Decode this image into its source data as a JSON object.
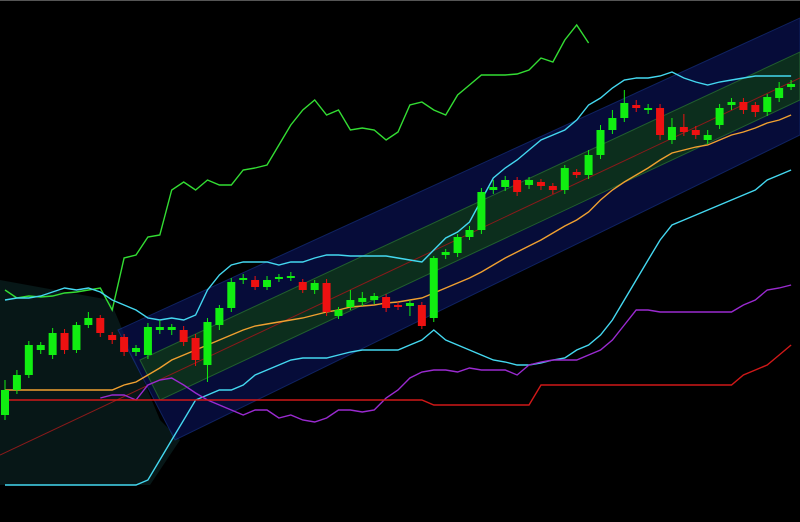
{
  "chart_data": {
    "type": "candlestick",
    "ylim": [
      0,
      522
    ],
    "up_color": "#11ee11",
    "down_color": "#ee1111",
    "open": [
      107,
      132,
      147,
      172,
      167,
      189,
      172,
      197,
      204,
      187,
      185,
      170,
      167,
      192,
      192,
      192,
      184,
      157,
      197,
      214,
      242,
      242,
      235,
      243,
      244,
      240,
      232,
      239,
      206,
      215,
      220,
      222,
      225,
      217,
      216,
      217,
      204,
      267,
      269,
      285,
      292,
      332,
      335,
      342,
      337,
      340,
      336,
      332,
      350,
      347,
      367,
      392,
      404,
      417,
      412,
      414,
      382,
      395,
      392,
      382,
      397,
      417,
      420,
      417,
      410,
      424,
      435
    ],
    "close": [
      132,
      147,
      177,
      177,
      189,
      172,
      197,
      204,
      189,
      182,
      170,
      174,
      195,
      195,
      195,
      180,
      162,
      200,
      214,
      240,
      244,
      235,
      242,
      245,
      246,
      232,
      239,
      210,
      212,
      222,
      224,
      226,
      214,
      215,
      219,
      196,
      264,
      270,
      285,
      292,
      330,
      335,
      342,
      330,
      342,
      336,
      332,
      354,
      347,
      367,
      392,
      404,
      419,
      414,
      414,
      387,
      395,
      390,
      387,
      387,
      414,
      420,
      412,
      410,
      425,
      434,
      438
    ],
    "high": [
      142,
      152,
      181,
      180,
      194,
      193,
      200,
      210,
      207,
      190,
      188,
      177,
      199,
      202,
      198,
      196,
      188,
      204,
      217,
      244,
      248,
      246,
      246,
      248,
      250,
      243,
      242,
      243,
      215,
      232,
      230,
      229,
      228,
      220,
      222,
      220,
      266,
      273,
      288,
      296,
      334,
      342,
      346,
      345,
      345,
      343,
      339,
      357,
      353,
      372,
      397,
      412,
      432,
      422,
      418,
      418,
      404,
      408,
      396,
      392,
      418,
      424,
      424,
      420,
      428,
      440,
      442
    ],
    "low": [
      102,
      128,
      144,
      168,
      163,
      168,
      169,
      194,
      185,
      178,
      166,
      166,
      163,
      188,
      187,
      176,
      156,
      140,
      192,
      210,
      238,
      232,
      232,
      240,
      241,
      229,
      228,
      206,
      203,
      212,
      216,
      218,
      210,
      212,
      206,
      193,
      200,
      263,
      265,
      282,
      288,
      328,
      331,
      326,
      333,
      332,
      328,
      328,
      344,
      343,
      363,
      388,
      400,
      410,
      408,
      382,
      378,
      386,
      383,
      378,
      393,
      412,
      408,
      405,
      406,
      420,
      432
    ],
    "series": [
      {
        "color": "#33dd33",
        "values": [
          232,
          224,
          226,
          225,
          226,
          229,
          230,
          232,
          234,
          212,
          264,
          267,
          285,
          287,
          332,
          340,
          332,
          342,
          337,
          337,
          352,
          354,
          357,
          377,
          397,
          412,
          422,
          407,
          412,
          392,
          394,
          392,
          382,
          390,
          417,
          420,
          412,
          407,
          427,
          437,
          447,
          447,
          447,
          448,
          452,
          464,
          460,
          482,
          497,
          479,
          null,
          null,
          null,
          null,
          null,
          null,
          null,
          null,
          null,
          null,
          null,
          null,
          null,
          null,
          null,
          null,
          null
        ]
      },
      {
        "color": "#44d8f0",
        "values": [
          222,
          224,
          224,
          226,
          230,
          234,
          232,
          234,
          230,
          222,
          217,
          212,
          204,
          202,
          204,
          202,
          207,
          232,
          247,
          257,
          260,
          260,
          260,
          257,
          260,
          260,
          264,
          267,
          267,
          266,
          266,
          266,
          266,
          264,
          262,
          260,
          272,
          284,
          290,
          300,
          322,
          344,
          354,
          362,
          372,
          382,
          387,
          392,
          402,
          417,
          424,
          434,
          442,
          444,
          444,
          446,
          450,
          444,
          440,
          437,
          440,
          442,
          444,
          446,
          446,
          446,
          446
        ]
      },
      {
        "color": "#44d8f0",
        "values": [
          37,
          37,
          37,
          37,
          37,
          37,
          37,
          37,
          37,
          37,
          37,
          37,
          42,
          62,
          82,
          102,
          122,
          127,
          132,
          132,
          137,
          147,
          152,
          157,
          162,
          164,
          164,
          164,
          167,
          170,
          172,
          172,
          172,
          172,
          177,
          182,
          192,
          182,
          177,
          172,
          167,
          162,
          160,
          157,
          157,
          159,
          162,
          164,
          172,
          177,
          187,
          202,
          222,
          242,
          262,
          282,
          297,
          302,
          307,
          312,
          317,
          322,
          327,
          332,
          342,
          347,
          352
        ]
      },
      {
        "color": "#f0a030",
        "values": [
          132,
          132,
          132,
          132,
          132,
          132,
          132,
          132,
          132,
          132,
          137,
          140,
          147,
          154,
          162,
          167,
          172,
          177,
          182,
          187,
          192,
          196,
          198,
          200,
          202,
          204,
          207,
          210,
          212,
          215,
          216,
          217,
          219,
          220,
          222,
          224,
          229,
          234,
          239,
          244,
          250,
          257,
          264,
          270,
          276,
          282,
          289,
          296,
          302,
          310,
          322,
          332,
          340,
          347,
          354,
          362,
          369,
          372,
          375,
          377,
          382,
          387,
          390,
          394,
          399,
          402,
          407
        ]
      },
      {
        "color": "#9a2ad0",
        "values": [
          null,
          null,
          null,
          null,
          null,
          null,
          null,
          null,
          124,
          127,
          127,
          122,
          137,
          142,
          144,
          137,
          129,
          122,
          117,
          112,
          107,
          112,
          112,
          104,
          107,
          102,
          100,
          104,
          112,
          112,
          110,
          112,
          124,
          132,
          144,
          150,
          152,
          152,
          150,
          154,
          152,
          152,
          152,
          147,
          157,
          160,
          162,
          162,
          162,
          167,
          172,
          182,
          197,
          212,
          212,
          210,
          210,
          210,
          210,
          210,
          210,
          210,
          217,
          222,
          232,
          234,
          237
        ]
      },
      {
        "color": "#d01818",
        "values": [
          122,
          122,
          122,
          122,
          122,
          122,
          122,
          122,
          122,
          122,
          122,
          122,
          122,
          122,
          122,
          122,
          122,
          122,
          122,
          122,
          122,
          122,
          122,
          122,
          122,
          122,
          122,
          122,
          122,
          122,
          122,
          122,
          122,
          122,
          122,
          122,
          117,
          117,
          117,
          117,
          117,
          117,
          117,
          117,
          117,
          137,
          137,
          137,
          137,
          137,
          137,
          137,
          137,
          137,
          137,
          137,
          137,
          137,
          137,
          137,
          137,
          137,
          147,
          152,
          157,
          167,
          177
        ]
      }
    ]
  }
}
